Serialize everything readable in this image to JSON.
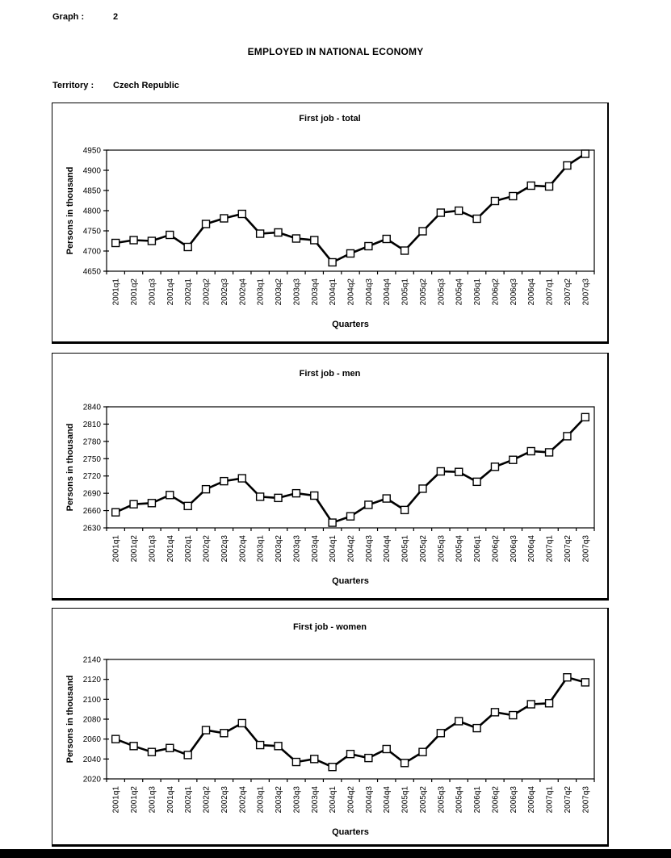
{
  "page": {
    "background": "#ffffff",
    "bottom_bar_color": "#000000",
    "line_color": "#000000",
    "marker_fill": "#ffffff"
  },
  "header": {
    "graph_label": "Graph :",
    "graph_number": "2",
    "main_title": "EMPLOYED IN NATIONAL ECONOMY",
    "territory_label": "Territory :",
    "territory_value": "Czech Republic"
  },
  "chart_data": [
    {
      "type": "line",
      "title": "First job - total",
      "ylabel": "Persons in thousand",
      "xlabel": "Quarters",
      "ylim": [
        4650,
        4950
      ],
      "ytick_step": 50,
      "grid": false,
      "legend": "none",
      "marker": "square",
      "categories": [
        "2001q1",
        "2001q2",
        "2001q3",
        "2001q4",
        "2002q1",
        "2002q2",
        "2002q3",
        "2002q4",
        "2003q1",
        "2003q2",
        "2003q3",
        "2003q4",
        "2004q1",
        "2004q2",
        "2004q3",
        "2004q4",
        "2005q1",
        "2005q2",
        "2005q3",
        "2005q4",
        "2006q1",
        "2006q2",
        "2006q3",
        "2006q4",
        "2007q1",
        "2007q2",
        "2007q3"
      ],
      "values": [
        4720,
        4727,
        4725,
        4740,
        4710,
        4767,
        4781,
        4792,
        4743,
        4746,
        4731,
        4727,
        4672,
        4694,
        4712,
        4730,
        4701,
        4749,
        4795,
        4800,
        4780,
        4824,
        4836,
        4862,
        4860,
        4912,
        4941
      ]
    },
    {
      "type": "line",
      "title": "First job - men",
      "ylabel": "Persons in thousand",
      "xlabel": "Quarters",
      "ylim": [
        2630,
        2840
      ],
      "ytick_step": 30,
      "grid": false,
      "legend": "none",
      "marker": "square",
      "categories": [
        "2001q1",
        "2001q2",
        "2001q3",
        "2001q4",
        "2002q1",
        "2002q2",
        "2002q3",
        "2002q4",
        "2003q1",
        "2003q2",
        "2003q3",
        "2003q4",
        "2004q1",
        "2004q2",
        "2004q3",
        "2004q4",
        "2005q1",
        "2005q2",
        "2005q3",
        "2005q4",
        "2006q1",
        "2006q2",
        "2006q3",
        "2006q4",
        "2007q1",
        "2007q2",
        "2007q3"
      ],
      "values": [
        2657,
        2671,
        2673,
        2687,
        2668,
        2697,
        2711,
        2716,
        2684,
        2682,
        2690,
        2686,
        2639,
        2650,
        2670,
        2681,
        2661,
        2698,
        2728,
        2727,
        2710,
        2736,
        2748,
        2763,
        2761,
        2789,
        2822
      ]
    },
    {
      "type": "line",
      "title": "First job - women",
      "ylabel": "Persons in thousand",
      "xlabel": "Quarters",
      "ylim": [
        2020,
        2140
      ],
      "ytick_step": 20,
      "grid": false,
      "legend": "none",
      "marker": "square",
      "categories": [
        "2001q1",
        "2001q2",
        "2001q3",
        "2001q4",
        "2002q1",
        "2002q2",
        "2002q3",
        "2002q4",
        "2003q1",
        "2003q2",
        "2003q3",
        "2003q4",
        "2004q1",
        "2004q2",
        "2004q3",
        "2004q4",
        "2005q1",
        "2005q2",
        "2005q3",
        "2005q4",
        "2006q1",
        "2006q2",
        "2006q3",
        "2006q4",
        "2007q1",
        "2007q2",
        "2007q3"
      ],
      "values": [
        2060,
        2053,
        2047,
        2051,
        2044,
        2069,
        2066,
        2076,
        2054,
        2053,
        2037,
        2040,
        2032,
        2045,
        2041,
        2050,
        2036,
        2047,
        2066,
        2078,
        2071,
        2087,
        2084,
        2095,
        2096,
        2122,
        2117
      ]
    }
  ]
}
